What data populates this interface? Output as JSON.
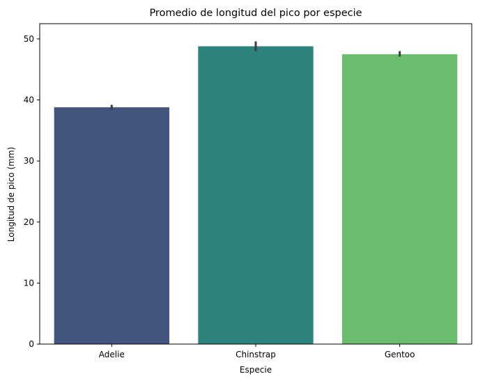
{
  "chart_data": {
    "type": "bar",
    "title": "Promedio de longitud del pico por especie",
    "xlabel": "Especie",
    "ylabel": "Longitud de pico  (mm)",
    "categories": [
      "Adelie",
      "Chinstrap",
      "Gentoo"
    ],
    "values": [
      38.8,
      48.8,
      47.5
    ],
    "error_bars": [
      [
        38.4,
        39.2
      ],
      [
        48.0,
        49.6
      ],
      [
        47.1,
        48.0
      ]
    ],
    "bar_colors": [
      "#43557f",
      "#2e837d",
      "#6bbd6e"
    ],
    "error_bar_color": "#3d3d3d",
    "ylim": [
      0,
      52.5
    ],
    "yticks": [
      0,
      10,
      20,
      30,
      40,
      50
    ],
    "grid": false,
    "legend": "none"
  }
}
